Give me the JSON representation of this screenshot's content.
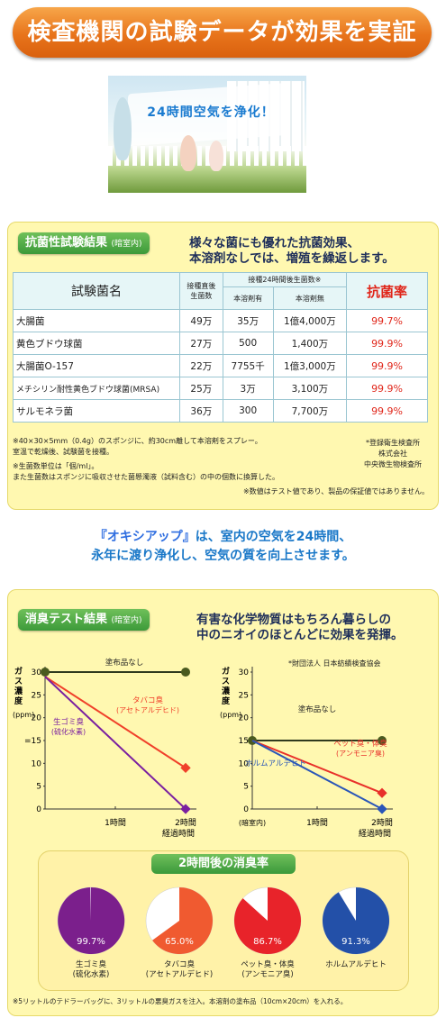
{
  "banner": {
    "title": "検査機関の試験データが効果を実証"
  },
  "photo": {
    "caption": "24時間空気を浄化！"
  },
  "antibacterial": {
    "tag": "抗菌性試験結果",
    "tag_sub": "(暗室内)",
    "headline_1": "様々な菌にも優れた抗菌効果、",
    "headline_2": "本溶剤なしでは、増殖を繰返します。",
    "table": {
      "col_name": "試験菌名",
      "col_initial_1": "接種直後",
      "col_initial_2": "生菌数",
      "col_24h": "接種24時間後生菌数※",
      "col_with": "本溶剤有",
      "col_without": "本溶剤無",
      "col_rate": "抗菌率",
      "rows": [
        {
          "name": "大腸菌",
          "initial": "49万",
          "with": "35万",
          "without": "1億4,000万",
          "rate": "99.7%"
        },
        {
          "name": "黄色ブドウ球菌",
          "initial": "27万",
          "with": "500",
          "without": "1,400万",
          "rate": "99.9%"
        },
        {
          "name": "大腸菌O-157",
          "initial": "22万",
          "with": "7755千",
          "without": "1億3,000万",
          "rate": "99.9%"
        },
        {
          "name": "メチシリン耐性黄色ブドウ球菌(MRSA)",
          "initial": "25万",
          "with": "3万",
          "without": "3,100万",
          "rate": "99.9%"
        },
        {
          "name": "サルモネラ菌",
          "initial": "36万",
          "with": "300",
          "without": "7,700万",
          "rate": "99.9%"
        }
      ]
    },
    "note_1": "※40×30×5mm（0.4g）のスポンジに、約30cm離して本溶剤をスプレー。",
    "note_2": "室温で乾燥後、試験菌を接種。",
    "note_3": "※生菌数単位は「個/ml」。",
    "note_4": "また生菌数はスポンジに吸収させた菌懸濁液（試料含む）の中の個数に換算した。",
    "note_5": "※数値はテスト値であり、製品の保証値ではありません。",
    "org_1": "*登録衛生検査所",
    "org_2": "株式会社",
    "org_3": "中央微生物検査所"
  },
  "slogan": {
    "product": "『オキシアップ』",
    "line_1_rest": "は、室内の空気を24時間、",
    "line_2": "永年に渡り浄化し、空気の質を向上させます。"
  },
  "deodorize": {
    "tag": "消臭テスト結果",
    "tag_sub": "(暗室内)",
    "headline_1": "有害な化学物質はもちろん暮らしの",
    "headline_2": "中のニオイのほとんどに効果を発揮。",
    "org": "*財団法人 日本紡績検査協会",
    "note": "※5リットルのテドラーバッグに、3リットルの悪臭ガスを注入。本溶剤の塗布品（10cm×20cm）を入れる。"
  },
  "chart_data": [
    {
      "type": "line",
      "ylabel": "ガス濃度(ppm)",
      "xlabel": "経過時間",
      "ylim": [
        0,
        30
      ],
      "yticks": [
        "30",
        "25",
        "20",
        "=15",
        "10",
        "5",
        "0"
      ],
      "xticks": [
        "1時間",
        "2時間"
      ],
      "series": [
        {
          "name": "塗布品なし",
          "x": [
            0,
            2
          ],
          "values": [
            30,
            30
          ],
          "color": "#2f3a1e"
        },
        {
          "name": "タバコ臭",
          "name_sub": "(アセトアルデヒド)",
          "x": [
            0,
            2
          ],
          "values": [
            29,
            9
          ],
          "color": "#f0402a"
        },
        {
          "name": "生ゴミ臭",
          "name_sub": "(硫化水素)",
          "x": [
            0,
            2
          ],
          "values": [
            29,
            0
          ],
          "color": "#7a1fa0"
        }
      ]
    },
    {
      "type": "line",
      "ylabel": "ガス濃度(ppm)",
      "xlabel": "経過時間",
      "x0_label": "(暗室内)",
      "ylim": [
        0,
        30
      ],
      "yticks": [
        "30",
        "25",
        "20",
        "15",
        "10",
        "5",
        "0"
      ],
      "xticks": [
        "1時間",
        "2時間"
      ],
      "series": [
        {
          "name": "塗布品なし",
          "x": [
            0,
            2
          ],
          "values": [
            15,
            15
          ],
          "color": "#2f3a1e"
        },
        {
          "name": "ペット臭・体臭",
          "name_sub": "(アンモニア臭)",
          "x": [
            0,
            2
          ],
          "values": [
            15,
            3.5
          ],
          "color": "#e8302a"
        },
        {
          "name": "ホルムアルデヒト",
          "x": [
            0,
            2
          ],
          "values": [
            15,
            0
          ],
          "color": "#2a56b8"
        }
      ]
    },
    {
      "type": "pie",
      "title": "2時間後の消臭率",
      "slices": [
        {
          "label": "生ゴミ臭",
          "label_sub": "(硫化水素)",
          "value": 99.7,
          "pct": "99.7%",
          "color": "#7b1f8c"
        },
        {
          "label": "タバコ臭",
          "label_sub": "(アセトアルデヒド)",
          "value": 65.0,
          "pct": "65.0%",
          "color": "#f05a30"
        },
        {
          "label": "ペット臭・体臭",
          "label_sub": "(アンモニア臭)",
          "value": 86.7,
          "pct": "86.7%",
          "color": "#e8232a"
        },
        {
          "label": "ホルムアルデヒト",
          "label_sub": "",
          "value": 91.3,
          "pct": "91.3%",
          "color": "#2350a8"
        }
      ]
    }
  ]
}
